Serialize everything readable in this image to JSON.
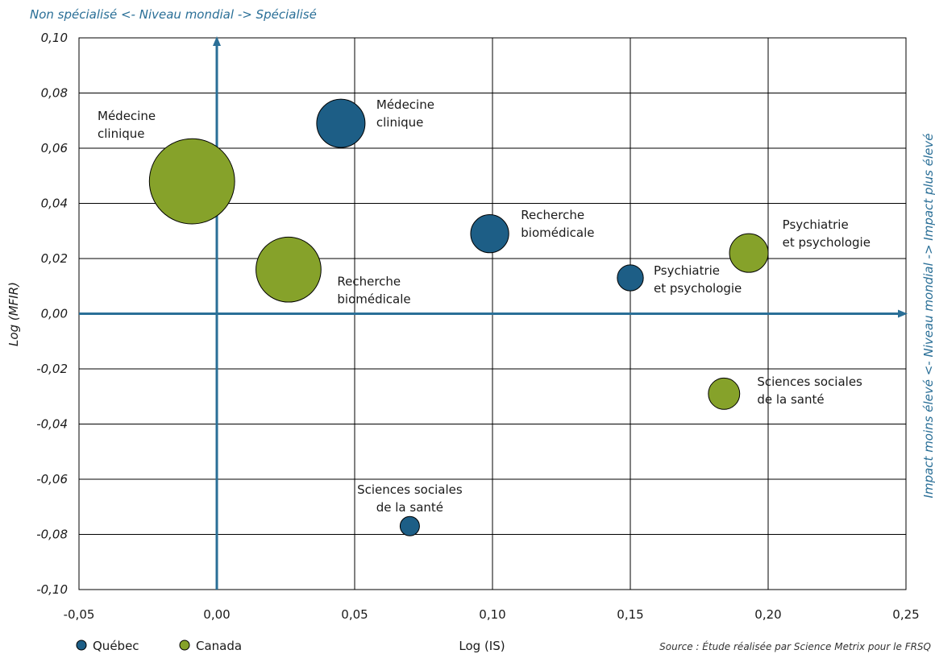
{
  "chart_data": {
    "type": "scatter",
    "top_note": "Non spécialisé <- Niveau mondial -> Spécialisé",
    "right_note": "Impact moins élevé <- Niveau mondial -> Impact plus élevé",
    "xlabel": "Log (IS)",
    "ylabel": "Log (MFIR)",
    "source": "Source : Étude réalisée par Science Metrix pour le FRSQ",
    "xlim": [
      -0.05,
      0.25
    ],
    "ylim": [
      -0.1,
      0.1
    ],
    "x_ticks": [
      "-0,05",
      "0,00",
      "0,05",
      "0,10",
      "0,15",
      "0,20",
      "0,25"
    ],
    "y_ticks": [
      "0,10",
      "0,08",
      "0,06",
      "0,04",
      "0,02",
      "0,00",
      "-0,02",
      "-0,04",
      "-0,06",
      "-0,08",
      "-0,10"
    ],
    "grid": true,
    "legend_position": "bottom-left",
    "series": [
      {
        "name": "Québec",
        "color": "#1d5e86",
        "points": [
          {
            "label": [
              "Médecine",
              "clinique"
            ],
            "x": 0.045,
            "y": 0.069,
            "size": 1.0
          },
          {
            "label": [
              "Recherche",
              "biomédicale"
            ],
            "x": 0.099,
            "y": 0.029,
            "size": 0.62
          },
          {
            "label": [
              "Psychiatrie",
              "et psychologie"
            ],
            "x": 0.15,
            "y": 0.013,
            "size": 0.29
          },
          {
            "label": [
              "Sciences sociales",
              "de la santé"
            ],
            "x": 0.07,
            "y": -0.077,
            "size": 0.16
          }
        ]
      },
      {
        "name": "Canada",
        "color": "#86a22a",
        "points": [
          {
            "label": [
              "Médecine",
              "clinique"
            ],
            "x": -0.009,
            "y": 0.048,
            "size": 3.11
          },
          {
            "label": [
              "Recherche",
              "biomédicale"
            ],
            "x": 0.026,
            "y": 0.016,
            "size": 1.81
          },
          {
            "label": [
              "Psychiatrie",
              "et psychologie"
            ],
            "x": 0.193,
            "y": 0.022,
            "size": 0.64
          },
          {
            "label": [
              "Sciences sociales",
              "de la santé"
            ],
            "x": 0.184,
            "y": -0.029,
            "size": 0.42
          }
        ]
      }
    ]
  }
}
